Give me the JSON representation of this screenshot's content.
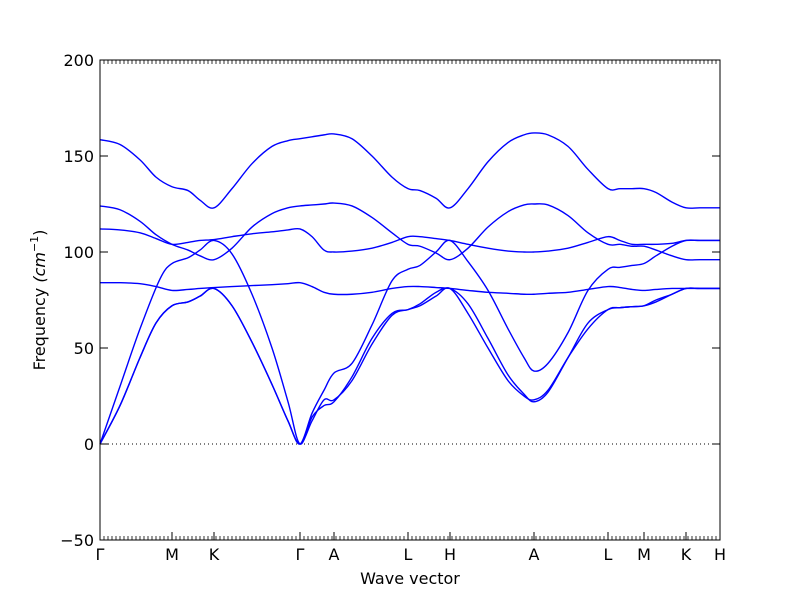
{
  "chart_data": {
    "type": "line",
    "xlabel": "Wave vector",
    "ylabel": "Frequency ",
    "ylabel_unit": "(cm",
    "ylabel_unit_exp": "−1",
    "ylabel_unit_close": ")",
    "ylim": [
      -50,
      200
    ],
    "yticks": [
      -50,
      0,
      50,
      100,
      150,
      200
    ],
    "x_range": [
      0,
      15.5
    ],
    "grid": false,
    "zero_line": "dotted",
    "line_color": "#0000ff",
    "x_ticks": [
      {
        "label": "Γ",
        "x": 0
      },
      {
        "label": "M",
        "x": 1.8
      },
      {
        "label": "K",
        "x": 2.85
      },
      {
        "label": "Γ",
        "x": 5.0
      },
      {
        "label": "A",
        "x": 5.85
      },
      {
        "label": "L",
        "x": 7.7
      },
      {
        "label": "H",
        "x": 8.75
      },
      {
        "label": "A",
        "x": 10.85
      },
      {
        "label": "L",
        "x": 12.7
      },
      {
        "label": "M",
        "x": 13.6
      },
      {
        "label": "K",
        "x": 14.65
      },
      {
        "label": "H",
        "x": 15.5
      }
    ],
    "series": [
      {
        "x": [
          0,
          0.5,
          1.0,
          1.4,
          1.8,
          2.2,
          2.5,
          2.85,
          3.3,
          3.8,
          4.3,
          4.7,
          5.0,
          5.3,
          5.6,
          5.85,
          6.3,
          6.8,
          7.3,
          7.7,
          8.0,
          8.4,
          8.75,
          9.2,
          9.7,
          10.2,
          10.6,
          10.85,
          11.2,
          11.7,
          12.2,
          12.7,
          13.0,
          13.3,
          13.6,
          13.9,
          14.3,
          14.65,
          15.0,
          15.5
        ],
        "y": [
          0,
          20,
          45,
          63,
          72,
          74,
          77,
          81,
          72,
          53,
          31,
          12,
          0,
          12,
          23,
          23,
          33,
          52,
          67,
          70,
          72,
          77,
          81,
          68,
          50,
          33,
          25,
          23,
          28,
          45,
          60,
          70,
          71,
          71.5,
          72,
          74,
          78,
          81,
          81,
          81
        ]
      },
      {
        "x": [
          0,
          0.5,
          1.0,
          1.4,
          1.8,
          2.2,
          2.5,
          2.85,
          3.3,
          3.8,
          4.3,
          4.7,
          5.0,
          5.3,
          5.6,
          5.85,
          6.3,
          6.8,
          7.3,
          7.7,
          8.0,
          8.4,
          8.75,
          9.2,
          9.7,
          10.2,
          10.6,
          10.85,
          11.2,
          11.7,
          12.2,
          12.7,
          13.0,
          13.3,
          13.6,
          13.9,
          14.3,
          14.65,
          15.0,
          15.5
        ],
        "y": [
          0,
          20,
          45,
          63,
          72,
          74,
          77,
          81,
          72,
          53,
          31,
          12,
          0,
          16,
          28,
          37,
          42,
          62,
          85,
          91,
          93,
          100,
          106,
          95,
          80,
          60,
          45,
          38,
          42,
          58,
          80,
          91,
          92,
          93,
          94,
          98,
          103,
          106,
          106,
          106
        ]
      },
      {
        "x": [
          0,
          0.5,
          1.0,
          1.5,
          1.8,
          2.2,
          2.5,
          2.85,
          3.3,
          3.8,
          4.3,
          4.7,
          5.0,
          5.3,
          5.6,
          5.85,
          6.3,
          6.8,
          7.3,
          7.7,
          8.0,
          8.4,
          8.75,
          9.2,
          9.7,
          10.2,
          10.6,
          10.85,
          11.2,
          11.7,
          12.2,
          12.7,
          13.0,
          13.3,
          13.6,
          13.9,
          14.3,
          14.65,
          15.0,
          15.5
        ],
        "y": [
          0,
          30,
          60,
          86,
          94,
          97,
          101,
          106,
          99,
          78,
          50,
          22,
          0,
          14,
          20,
          22,
          35,
          55,
          68,
          70,
          73,
          79,
          81,
          73,
          55,
          36,
          26,
          22,
          27,
          45,
          63,
          70,
          71,
          71.5,
          72,
          75,
          78,
          81,
          81,
          81
        ]
      },
      {
        "x": [
          0,
          0.5,
          1.0,
          1.4,
          1.8,
          2.2,
          2.5,
          2.85,
          3.3,
          3.8,
          4.3,
          4.7,
          5.0,
          5.3,
          5.6,
          5.85,
          6.3,
          6.8,
          7.3,
          7.7,
          8.0,
          8.4,
          8.75,
          9.2,
          9.7,
          10.2,
          10.6,
          10.85,
          11.2,
          11.7,
          12.2,
          12.7,
          13.0,
          13.3,
          13.6,
          13.9,
          14.3,
          14.65,
          15.0,
          15.5
        ],
        "y": [
          84,
          84,
          83.5,
          82,
          80,
          80.5,
          81,
          81.5,
          82,
          82.5,
          83,
          83.5,
          84,
          82,
          79,
          78,
          78,
          79,
          81,
          82,
          82,
          81.5,
          81,
          80,
          79,
          78.5,
          78,
          78,
          78.5,
          79,
          80.5,
          82,
          81.5,
          80.5,
          80,
          80.5,
          81,
          81,
          81,
          81
        ]
      },
      {
        "x": [
          0,
          0.5,
          1.0,
          1.4,
          1.8,
          2.2,
          2.5,
          2.85,
          3.3,
          3.8,
          4.3,
          4.7,
          5.0,
          5.3,
          5.6,
          5.85,
          6.3,
          6.8,
          7.3,
          7.7,
          8.0,
          8.4,
          8.75,
          9.2,
          9.7,
          10.2,
          10.6,
          10.85,
          11.2,
          11.7,
          12.2,
          12.7,
          13.0,
          13.3,
          13.6,
          13.9,
          14.3,
          14.65,
          15.0,
          15.5
        ],
        "y": [
          112,
          111.5,
          110,
          107,
          104,
          105,
          106,
          106.5,
          108,
          109.5,
          110.5,
          111.5,
          112,
          108,
          101,
          100,
          100.5,
          102,
          105,
          108,
          108,
          107,
          106,
          104,
          102,
          100.5,
          100,
          100,
          100.5,
          102,
          105,
          108,
          106,
          104,
          104,
          104,
          104.5,
          106,
          106,
          106
        ]
      },
      {
        "x": [
          0,
          0.5,
          1.0,
          1.4,
          1.8,
          2.2,
          2.5,
          2.85,
          3.3,
          3.8,
          4.3,
          4.7,
          5.0,
          5.3,
          5.6,
          5.85,
          6.3,
          6.8,
          7.3,
          7.7,
          8.0,
          8.4,
          8.75,
          9.2,
          9.7,
          10.2,
          10.6,
          10.85,
          11.2,
          11.7,
          12.2,
          12.7,
          13.0,
          13.3,
          13.6,
          13.9,
          14.3,
          14.65,
          15.0,
          15.5
        ],
        "y": [
          124,
          122,
          116,
          109,
          104,
          101,
          98,
          96,
          102,
          113,
          120,
          123,
          124,
          124.5,
          125,
          125.5,
          124,
          118,
          110,
          104,
          103,
          99.5,
          96,
          102,
          113,
          121,
          124.5,
          125,
          124.5,
          119,
          110,
          104,
          104,
          103,
          103,
          101,
          98,
          96,
          96,
          96
        ]
      },
      {
        "x": [
          0,
          0.5,
          1.0,
          1.4,
          1.8,
          2.2,
          2.5,
          2.85,
          3.3,
          3.8,
          4.3,
          4.7,
          5.0,
          5.3,
          5.6,
          5.85,
          6.3,
          6.8,
          7.3,
          7.7,
          8.0,
          8.4,
          8.75,
          9.2,
          9.7,
          10.2,
          10.6,
          10.85,
          11.2,
          11.7,
          12.2,
          12.7,
          13.0,
          13.3,
          13.6,
          13.9,
          14.3,
          14.65,
          15.0,
          15.5
        ],
        "y": [
          158.5,
          156,
          148,
          139,
          134,
          132,
          127,
          123,
          133,
          146,
          155,
          158,
          159,
          160,
          161,
          161.5,
          159,
          150,
          139,
          133,
          132,
          128,
          123,
          133,
          147,
          157,
          161,
          162,
          161,
          155,
          143,
          133,
          133,
          133,
          133,
          131,
          126,
          123,
          123,
          123
        ]
      }
    ]
  }
}
